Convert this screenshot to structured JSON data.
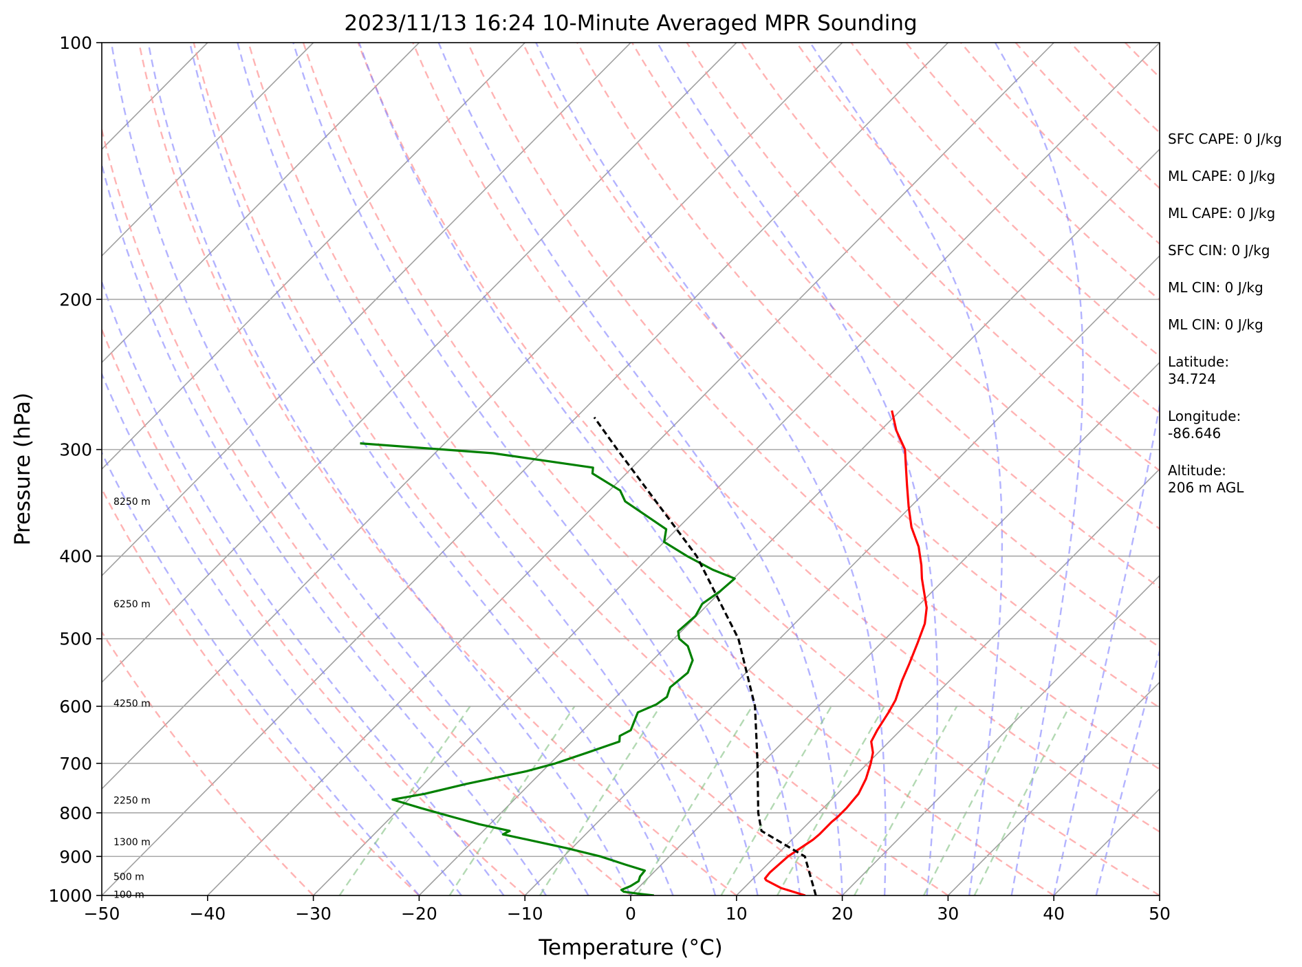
{
  "chart_data": {
    "type": "line",
    "title": "2023/11/13 16:24 10-Minute Averaged MPR Sounding",
    "xlabel": "Temperature (°C)",
    "ylabel": "Pressure (hPa)",
    "xlim": [
      -50,
      50
    ],
    "ylim": [
      1000,
      100
    ],
    "y_scale": "log",
    "skew": "skew-T log-P",
    "grid": true,
    "x_ticks": [
      -50,
      -40,
      -30,
      -20,
      -10,
      0,
      10,
      20,
      30,
      40,
      50
    ],
    "x_tick_labels": [
      "−50",
      "−40",
      "−30",
      "−20",
      "−10",
      "0",
      "10",
      "20",
      "30",
      "40",
      "50"
    ],
    "y_ticks": [
      100,
      200,
      300,
      400,
      500,
      600,
      700,
      800,
      900,
      1000
    ],
    "y_tick_labels": [
      "100",
      "200",
      "300",
      "400",
      "500",
      "600",
      "700",
      "800",
      "900",
      "1000"
    ],
    "series": [
      {
        "color": "#ff0000",
        "points": [
          [
            1000,
            16.5
          ],
          [
            980,
            13.5
          ],
          [
            960,
            11.4
          ],
          [
            955,
            11.1
          ],
          [
            940,
            11.0
          ],
          [
            900,
            11.2
          ],
          [
            870,
            11.8
          ],
          [
            860,
            12.0
          ],
          [
            848,
            12.1
          ],
          [
            820,
            12.1
          ],
          [
            810,
            12.2
          ],
          [
            790,
            12.2
          ],
          [
            760,
            12.0
          ],
          [
            730,
            11.3
          ],
          [
            700,
            10.3
          ],
          [
            680,
            9.5
          ],
          [
            660,
            8.3
          ],
          [
            640,
            7.8
          ],
          [
            610,
            7.2
          ],
          [
            590,
            6.7
          ],
          [
            560,
            5.5
          ],
          [
            535,
            4.6
          ],
          [
            505,
            3.4
          ],
          [
            480,
            2.3
          ],
          [
            460,
            1.0
          ],
          [
            440,
            -0.8
          ],
          [
            425,
            -2.2
          ],
          [
            410,
            -3.5
          ],
          [
            390,
            -5.5
          ],
          [
            370,
            -8.0
          ],
          [
            350,
            -10.2
          ],
          [
            330,
            -12.4
          ],
          [
            310,
            -14.7
          ],
          [
            300,
            -15.9
          ],
          [
            285,
            -18.5
          ],
          [
            270,
            -20.8
          ]
        ]
      },
      {
        "color": "#008000",
        "points": [
          [
            1000,
            2.2
          ],
          [
            995,
            0.5
          ],
          [
            990,
            -1.0
          ],
          [
            985,
            -1.4
          ],
          [
            975,
            -0.9
          ],
          [
            962,
            -0.6
          ],
          [
            950,
            -0.9
          ],
          [
            935,
            -1.0
          ],
          [
            920,
            -3.4
          ],
          [
            900,
            -6.5
          ],
          [
            880,
            -10.5
          ],
          [
            860,
            -15.0
          ],
          [
            848,
            -17.8
          ],
          [
            840,
            -17.5
          ],
          [
            825,
            -21.0
          ],
          [
            810,
            -24.0
          ],
          [
            790,
            -28.0
          ],
          [
            772,
            -31.5
          ],
          [
            760,
            -29.0
          ],
          [
            740,
            -26.0
          ],
          [
            715,
            -21.5
          ],
          [
            700,
            -19.5
          ],
          [
            680,
            -17.5
          ],
          [
            660,
            -15.5
          ],
          [
            650,
            -16.0
          ],
          [
            640,
            -15.5
          ],
          [
            625,
            -16.0
          ],
          [
            610,
            -16.5
          ],
          [
            597,
            -15.5
          ],
          [
            585,
            -15.2
          ],
          [
            570,
            -15.8
          ],
          [
            548,
            -15.5
          ],
          [
            530,
            -16.2
          ],
          [
            510,
            -18.0
          ],
          [
            500,
            -19.5
          ],
          [
            490,
            -20.3
          ],
          [
            470,
            -20.1
          ],
          [
            455,
            -20.6
          ],
          [
            440,
            -20.1
          ],
          [
            425,
            -19.9
          ],
          [
            415,
            -22.8
          ],
          [
            400,
            -26.5
          ],
          [
            385,
            -30.0
          ],
          [
            372,
            -31.0
          ],
          [
            345,
            -37.5
          ],
          [
            335,
            -39.0
          ],
          [
            320,
            -43.2
          ],
          [
            315,
            -43.7
          ],
          [
            303,
            -54.5
          ],
          [
            295,
            -68.0
          ]
        ]
      },
      {
        "color": "#000000",
        "dashed": true,
        "points": [
          [
            1000,
            17.5
          ],
          [
            900,
            12.8
          ],
          [
            840,
            6.3
          ],
          [
            800,
            4.3
          ],
          [
            700,
            -0.4
          ],
          [
            600,
            -6.0
          ],
          [
            500,
            -13.9
          ],
          [
            400,
            -25.6
          ],
          [
            300,
            -43.1
          ],
          [
            275,
            -48.3
          ]
        ]
      }
    ],
    "height_labels": [
      {
        "p": 997,
        "text": "100 m"
      },
      {
        "p": 950,
        "text": "500 m"
      },
      {
        "p": 865,
        "text": "1300 m"
      },
      {
        "p": 773,
        "text": "2250 m"
      },
      {
        "p": 595,
        "text": "4250 m"
      },
      {
        "p": 455,
        "text": "6250 m"
      },
      {
        "p": 345,
        "text": "8250 m"
      }
    ],
    "info_lines": [
      "SFC CAPE: 0 J/kg",
      "ML CAPE: 0 J/kg",
      "ML CAPE: 0 J/kg",
      "SFC CIN: 0 J/kg",
      "ML CIN: 0 J/kg",
      "ML CIN: 0 J/kg",
      "Latitude:\n34.724",
      "Longitude:\n-86.646",
      "Altitude:\n206 m AGL"
    ],
    "colors": {
      "dry_adiabats": "#ff9999",
      "moist_adiabats": "#8080ff",
      "mixing_ratio": "#80c080",
      "isotherms": "#a0a0a0"
    }
  }
}
